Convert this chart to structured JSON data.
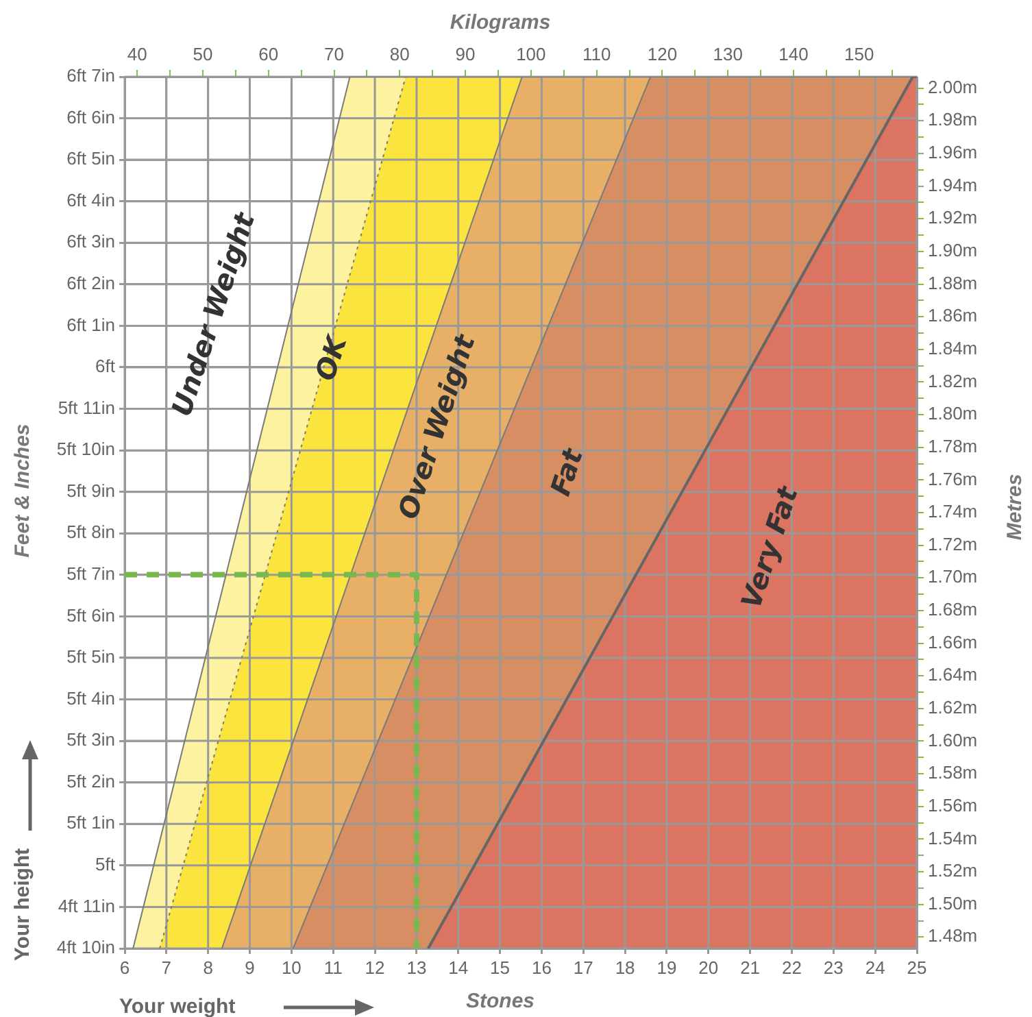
{
  "chart_data": {
    "type": "area",
    "xlabel": "Stones",
    "x2label": "Kilograms",
    "ylabel": "Feet & Inches",
    "y2label": "Metres",
    "xlim": [
      6,
      25
    ],
    "xticks": [
      6,
      7,
      8,
      9,
      10,
      11,
      12,
      13,
      14,
      15,
      16,
      17,
      18,
      19,
      20,
      21,
      22,
      23,
      24,
      25
    ],
    "x2lim": [
      38.1,
      158.8
    ],
    "x2ticks": [
      40,
      {
        "value": 45,
        "label": null
      },
      50,
      {
        "value": 55,
        "label": null
      },
      60,
      {
        "value": 65,
        "label": null
      },
      70,
      {
        "value": 75,
        "label": null
      },
      80,
      {
        "value": 85,
        "label": null
      },
      90,
      {
        "value": 95,
        "label": null
      },
      100,
      {
        "value": 105,
        "label": null
      },
      110,
      {
        "value": 115,
        "label": null
      },
      120,
      {
        "value": 125,
        "label": null
      },
      130,
      {
        "value": 135,
        "label": null
      },
      140,
      {
        "value": 145,
        "label": null
      },
      150,
      {
        "value": 155,
        "label": null
      }
    ],
    "ylim": [
      4.8333,
      6.5833
    ],
    "yticks": [
      {
        "value": 4.8333,
        "label": "4ft 10in"
      },
      {
        "value": 4.9167,
        "label": "4ft 11in"
      },
      {
        "value": 5,
        "label": "5ft"
      },
      {
        "value": 5.0833,
        "label": "5ft 1in"
      },
      {
        "value": 5.1667,
        "label": "5ft 2in"
      },
      {
        "value": 5.25,
        "label": "5ft 3in"
      },
      {
        "value": 5.3333,
        "label": "5ft 4in"
      },
      {
        "value": 5.4167,
        "label": "5ft 5in"
      },
      {
        "value": 5.5,
        "label": "5ft 6in"
      },
      {
        "value": 5.5833,
        "label": "5ft 7in"
      },
      {
        "value": 5.6667,
        "label": "5ft 8in"
      },
      {
        "value": 5.75,
        "label": "5ft 9in"
      },
      {
        "value": 5.8333,
        "label": "5ft 10in"
      },
      {
        "value": 5.9167,
        "label": "5ft 11in"
      },
      {
        "value": 6,
        "label": "6ft"
      },
      {
        "value": 6.0833,
        "label": "6ft 1in"
      },
      {
        "value": 6.1667,
        "label": "6ft 2in"
      },
      {
        "value": 6.25,
        "label": "6ft 3in"
      },
      {
        "value": 6.3333,
        "label": "6ft 4in"
      },
      {
        "value": 6.4167,
        "label": "6ft 5in"
      },
      {
        "value": 6.5,
        "label": "6ft 6in"
      },
      {
        "value": 6.5833,
        "label": "6ft 7in"
      }
    ],
    "y2lim": [
      1.473,
      2.007
    ],
    "y2ticks": [
      {
        "value": 1.48,
        "label": "1.48m"
      },
      {
        "value": 1.49,
        "label": null
      },
      {
        "value": 1.5,
        "label": "1.50m"
      },
      {
        "value": 1.51,
        "label": null
      },
      {
        "value": 1.52,
        "label": "1.52m"
      },
      {
        "value": 1.53,
        "label": null
      },
      {
        "value": 1.54,
        "label": "1.54m"
      },
      {
        "value": 1.55,
        "label": null
      },
      {
        "value": 1.56,
        "label": "1.56m"
      },
      {
        "value": 1.57,
        "label": null
      },
      {
        "value": 1.58,
        "label": "1.58m"
      },
      {
        "value": 1.59,
        "label": null
      },
      {
        "value": 1.6,
        "label": "1.60m"
      },
      {
        "value": 1.61,
        "label": null
      },
      {
        "value": 1.62,
        "label": "1.62m"
      },
      {
        "value": 1.63,
        "label": null
      },
      {
        "value": 1.64,
        "label": "1.64m"
      },
      {
        "value": 1.65,
        "label": null
      },
      {
        "value": 1.66,
        "label": "1.66m"
      },
      {
        "value": 1.67,
        "label": null
      },
      {
        "value": 1.68,
        "label": "1.68m"
      },
      {
        "value": 1.69,
        "label": null
      },
      {
        "value": 1.7,
        "label": "1.70m"
      },
      {
        "value": 1.71,
        "label": null
      },
      {
        "value": 1.72,
        "label": "1.72m"
      },
      {
        "value": 1.73,
        "label": null
      },
      {
        "value": 1.74,
        "label": "1.74m"
      },
      {
        "value": 1.75,
        "label": null
      },
      {
        "value": 1.76,
        "label": "1.76m"
      },
      {
        "value": 1.77,
        "label": null
      },
      {
        "value": 1.78,
        "label": "1.78m"
      },
      {
        "value": 1.79,
        "label": null
      },
      {
        "value": 1.8,
        "label": "1.80m"
      },
      {
        "value": 1.81,
        "label": null
      },
      {
        "value": 1.82,
        "label": "1.82m"
      },
      {
        "value": 1.83,
        "label": null
      },
      {
        "value": 1.84,
        "label": "1.84m"
      },
      {
        "value": 1.85,
        "label": null
      },
      {
        "value": 1.86,
        "label": "1.86m"
      },
      {
        "value": 1.87,
        "label": null
      },
      {
        "value": 1.88,
        "label": "1.88m"
      },
      {
        "value": 1.89,
        "label": null
      },
      {
        "value": 1.9,
        "label": "1.90m"
      },
      {
        "value": 1.91,
        "label": null
      },
      {
        "value": 1.92,
        "label": "1.92m"
      },
      {
        "value": 1.93,
        "label": null
      },
      {
        "value": 1.94,
        "label": "1.94m"
      },
      {
        "value": 1.95,
        "label": null
      },
      {
        "value": 1.96,
        "label": "1.96m"
      },
      {
        "value": 1.97,
        "label": null
      },
      {
        "value": 1.98,
        "label": "1.98m"
      },
      {
        "value": 1.99,
        "label": null
      },
      {
        "value": 2.0,
        "label": "2.00m"
      }
    ],
    "series": [
      {
        "color": "#fdf2a0",
        "axis": "y2",
        "x": [
          6.2,
          11.4,
          25
        ],
        "values": [
          1.473,
          2.007,
          2.007
        ]
      },
      {
        "color": "#fce43f",
        "axis": "y2",
        "line_style": "dotted",
        "x": [
          6.84,
          12.74,
          25
        ],
        "values": [
          1.473,
          2.007,
          2.007
        ]
      },
      {
        "color": "#e8b066",
        "axis": "y2",
        "x": [
          8.33,
          15.53,
          25
        ],
        "values": [
          1.473,
          2.007,
          2.007
        ]
      },
      {
        "color": "#d68e62",
        "axis": "y2",
        "x": [
          10.04,
          18.61,
          25
        ],
        "values": [
          1.473,
          2.007,
          2.007
        ]
      },
      {
        "color": "#dc7462",
        "axis": "y2",
        "x": [
          13.28,
          24.9,
          25
        ],
        "values": [
          1.473,
          2.007,
          2.007
        ]
      },
      {
        "type": "line",
        "color": "#78b84e",
        "axis": "y2",
        "line_style": "dashed",
        "x": [
          6,
          13,
          13
        ],
        "values": [
          1.702,
          1.702,
          1.473
        ]
      }
    ],
    "annotations": [
      "Under Weight",
      "OK",
      "Over Weight",
      "Fat",
      "Very Fat",
      "Your height",
      "Your weight"
    ],
    "grid": true,
    "legend": false,
    "marker": "none"
  }
}
